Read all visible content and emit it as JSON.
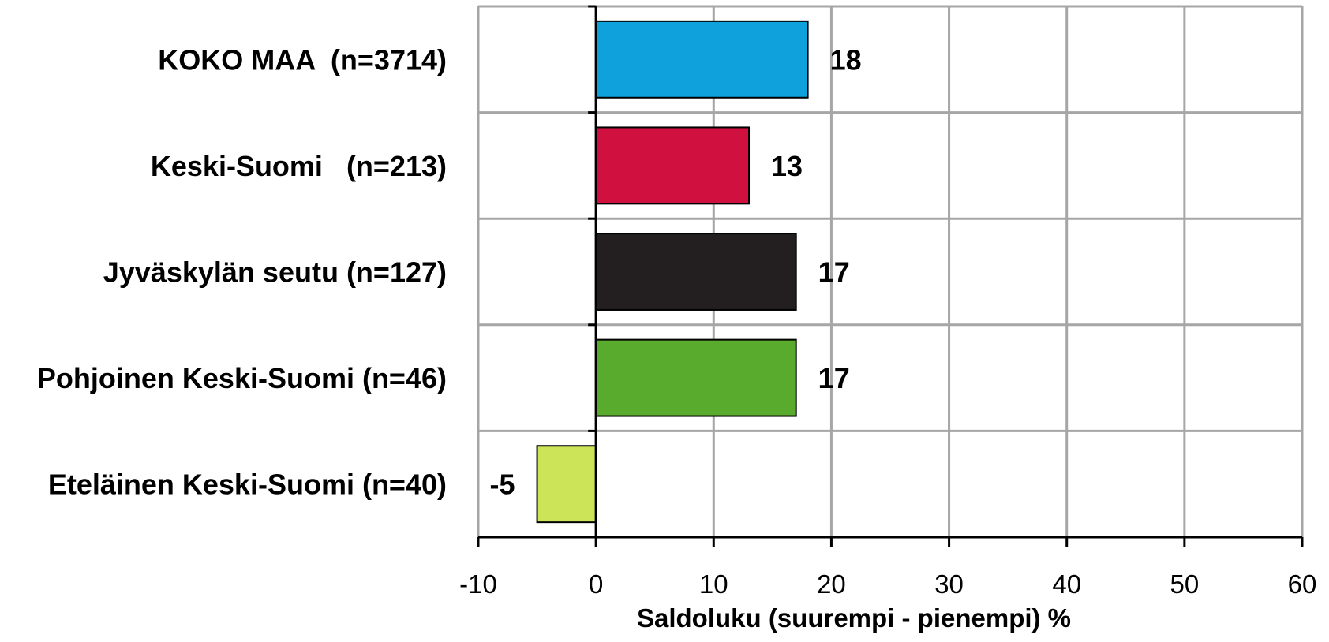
{
  "chart_data": {
    "type": "bar",
    "orientation": "horizontal",
    "categories": [
      "KOKO MAA  (n=3714)",
      "Keski-Suomi   (n=213)",
      "Jyväskylän seutu (n=127)",
      "Pohjoinen Keski-Suomi (n=46)",
      "Eteläinen Keski-Suomi (n=40)"
    ],
    "values": [
      18,
      13,
      17,
      17,
      -5
    ],
    "data_labels": [
      "18",
      "13",
      "17",
      "17",
      "-5"
    ],
    "colors": [
      "#0fa1db",
      "#d0113f",
      "#231f20",
      "#59ab2d",
      "#cce458"
    ],
    "xlabel": "Saldoluku (suurempi - pienempi) %",
    "xlim": [
      -10,
      60
    ],
    "xticks": [
      -10,
      0,
      10,
      20,
      30,
      40,
      50,
      60
    ],
    "xtick_labels": [
      "-10",
      "0",
      "10",
      "20",
      "30",
      "40",
      "50",
      "60"
    ],
    "grid": true,
    "legend": "none"
  }
}
